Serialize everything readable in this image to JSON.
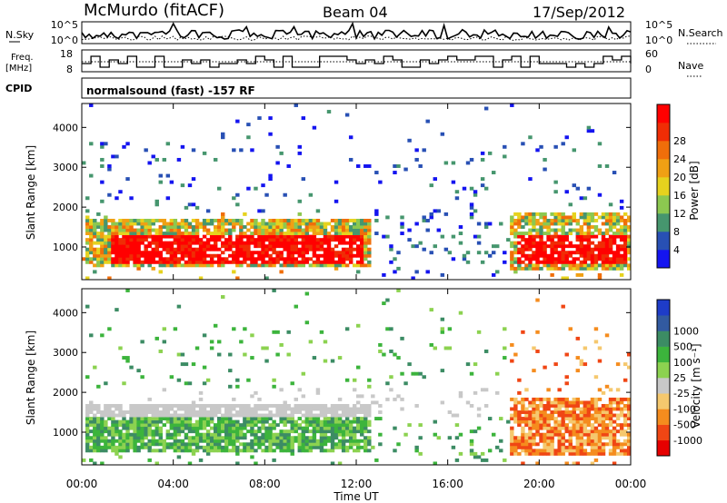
{
  "header": {
    "station": "McMurdo (fitACF)",
    "beam": "Beam 04",
    "date": "17/Sep/2012",
    "cpid_label": "CPID",
    "cpid_text": "normalsound (fast) -157 RF"
  },
  "top_panels": {
    "nsky": {
      "left_label": "N.Sky",
      "right_label": "N.Search",
      "yticks_left": [
        "10^5",
        "10^0"
      ],
      "yticks_right": [
        "10^5",
        "10^0"
      ]
    },
    "freq": {
      "left_label_1": "Freq.",
      "left_label_2": "[MHz]",
      "right_label": "Nave",
      "yticks_left": [
        "18",
        "8"
      ],
      "yticks_right": [
        "60",
        "0"
      ]
    }
  },
  "colors": {
    "power": [
      "#1414f0",
      "#2850b4",
      "#46966e",
      "#8cc850",
      "#e6d21e",
      "#f0a014",
      "#f06e0a",
      "#f02d05",
      "#ff0000"
    ],
    "velocity": [
      "#e60000",
      "#f04614",
      "#f58c1e",
      "#f5c86e",
      "#c8c8c8",
      "#8cd250",
      "#3cb43c",
      "#3c8c64",
      "#325aa0",
      "#1e3cc8"
    ]
  },
  "chart_data": [
    {
      "type": "heatmap",
      "title": "",
      "xlabel": "",
      "ylabel": "Slant Range [km]",
      "xlim_hours": [
        0,
        24
      ],
      "ylim": [
        180,
        4600
      ],
      "x_tick_labels": [
        "00:00",
        "04:00",
        "08:00",
        "12:00",
        "16:00",
        "20:00",
        "00:00"
      ],
      "y_tick_values": [
        1000,
        2000,
        3000,
        4000
      ],
      "colorbar": {
        "label": "Power [dB]",
        "tick_labels": [
          "4",
          "8",
          "12",
          "16",
          "20",
          "24",
          "28"
        ]
      }
    },
    {
      "type": "heatmap",
      "title": "",
      "xlabel": "Time UT",
      "ylabel": "Slant Range [km]",
      "xlim_hours": [
        0,
        24
      ],
      "ylim": [
        180,
        4600
      ],
      "x_tick_labels": [
        "00:00",
        "04:00",
        "08:00",
        "12:00",
        "16:00",
        "20:00",
        "00:00"
      ],
      "y_tick_values": [
        1000,
        2000,
        3000,
        4000
      ],
      "colorbar": {
        "label": "Velocity [m s⁻¹]",
        "tick_labels": [
          "1000",
          "500",
          "100",
          "25",
          "-25",
          "-100",
          "-500",
          "-1000"
        ]
      }
    }
  ]
}
